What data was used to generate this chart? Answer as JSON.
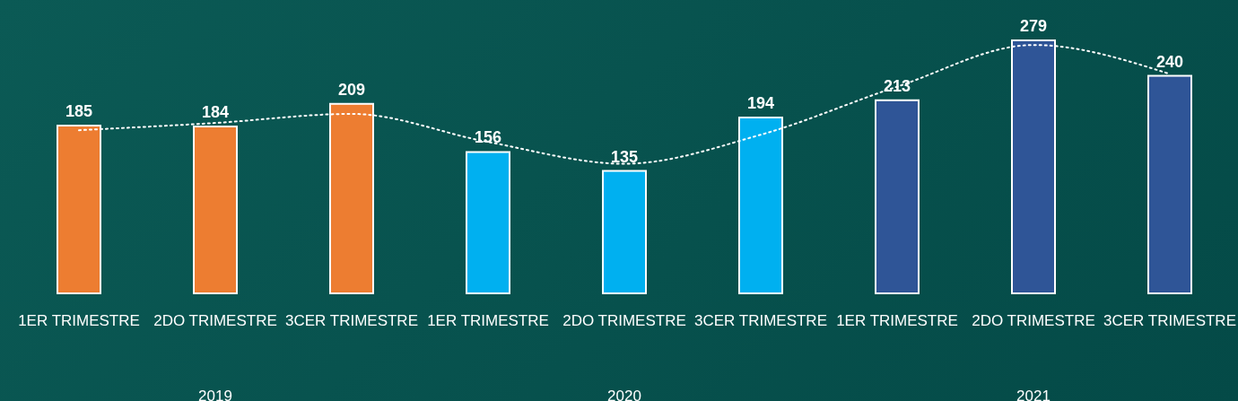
{
  "chart_data": {
    "type": "bar",
    "categories": [
      "1ER TRIMESTRE",
      "2DO TRIMESTRE",
      "3CER TRIMESTRE",
      "1ER TRIMESTRE",
      "2DO TRIMESTRE",
      "3CER TRIMESTRE",
      "1ER TRIMESTRE",
      "2DO TRIMESTRE",
      "3CER TRIMESTRE"
    ],
    "series": [
      {
        "value_labels": [
          "185",
          "184",
          "209",
          "156",
          "135",
          "194",
          "213",
          "279",
          "240"
        ],
        "colors": [
          "#ed7d31",
          "#ed7d31",
          "#ed7d31",
          "#00b0f0",
          "#00b0f0",
          "#00b0f0",
          "#2f5597",
          "#2f5597",
          "#2f5597"
        ],
        "values": [
          185,
          184,
          209,
          156,
          135,
          194,
          213,
          279,
          240
        ]
      },
      {
        "type": "line",
        "color": "#ffffff",
        "values": [
          180,
          188,
          198,
          167,
          143,
          175,
          228,
          274,
          242
        ]
      }
    ],
    "line_style": "dotted",
    "annotations": [
      "2019",
      "2020",
      "2021"
    ]
  }
}
